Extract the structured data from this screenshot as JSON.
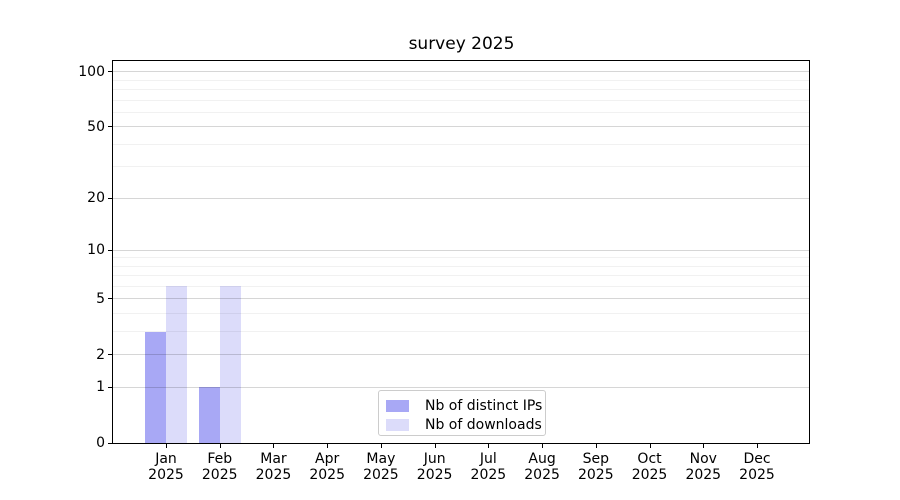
{
  "chart_data": {
    "type": "bar",
    "title": "survey 2025",
    "scale": "log1p",
    "x_tick_labels": [
      [
        "Jan",
        "2025"
      ],
      [
        "Feb",
        "2025"
      ],
      [
        "Mar",
        "2025"
      ],
      [
        "Apr",
        "2025"
      ],
      [
        "May",
        "2025"
      ],
      [
        "Jun",
        "2025"
      ],
      [
        "Jul",
        "2025"
      ],
      [
        "Aug",
        "2025"
      ],
      [
        "Sep",
        "2025"
      ],
      [
        "Oct",
        "2025"
      ],
      [
        "Nov",
        "2025"
      ],
      [
        "Dec",
        "2025"
      ]
    ],
    "series": [
      {
        "name": "Nb of distinct IPs",
        "color": "#a8a8f5",
        "values": [
          3,
          1,
          0,
          0,
          0,
          0,
          0,
          0,
          0,
          0,
          0,
          0
        ]
      },
      {
        "name": "Nb of downloads",
        "color": "#dcdcfa",
        "values": [
          6,
          6,
          0,
          0,
          0,
          0,
          0,
          0,
          0,
          0,
          0,
          0
        ]
      }
    ],
    "y_major_ticks": [
      0,
      1,
      2,
      5,
      10,
      20,
      50,
      100
    ],
    "y_minor_ticks": [
      3,
      4,
      6,
      7,
      8,
      9,
      30,
      40,
      60,
      70,
      80,
      90
    ],
    "ylim": [
      0,
      116
    ],
    "grid": true,
    "legend_position": "lower center",
    "colors": {
      "major_grid": "rgba(0,0,0,0.16)",
      "minor_grid": "rgba(0,0,0,0.055)",
      "axis": "#000000",
      "background": "#ffffff"
    }
  }
}
